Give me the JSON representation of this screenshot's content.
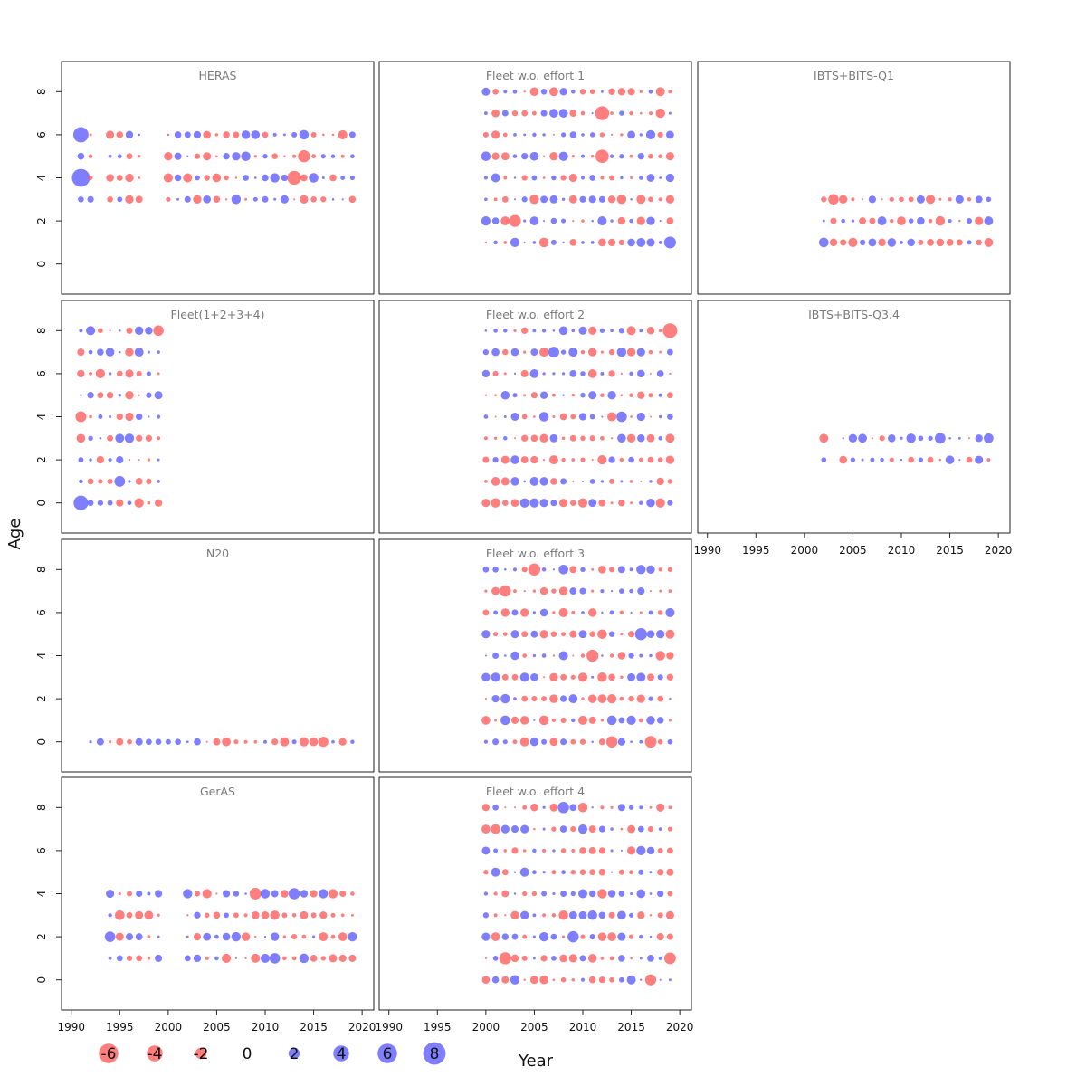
{
  "chart_data": {
    "type": "scatter",
    "description_of_encoding": "bubble plot of residuals; circle area ~ |residual|, blue = positive, red = negative",
    "xlabel": "Year",
    "ylabel": "Age",
    "xlim": [
      1989,
      2021.2
    ],
    "ylim": [
      -1.4,
      9.4
    ],
    "x_ticks": [
      1990,
      1995,
      2000,
      2005,
      2010,
      2015,
      2020
    ],
    "y_ticks": [
      0,
      2,
      4,
      6,
      8
    ],
    "colors": {
      "positive": "#5a5aff",
      "negative": "#ff5a5a"
    },
    "legend": {
      "placement": "bottom-left",
      "entries": [
        {
          "label": "-6",
          "value": -6
        },
        {
          "label": "-4",
          "value": -4
        },
        {
          "label": "-2",
          "value": -2
        },
        {
          "label": "0",
          "value": 0
        },
        {
          "label": "2",
          "value": 2
        },
        {
          "label": "4",
          "value": 4
        },
        {
          "label": "6",
          "value": 6
        },
        {
          "label": "8",
          "value": 8
        }
      ]
    },
    "panels": [
      {
        "title": "HERAS",
        "col": 0,
        "row": 0,
        "x_axis": false,
        "y_axis": true,
        "ages": [
          3,
          4,
          5,
          6
        ],
        "years": [
          1991,
          2019
        ],
        "gaps": [
          1993,
          1998,
          1999
        ],
        "seed": 11,
        "specials": [
          [
            1991,
            6,
            5.5
          ],
          [
            1991,
            4,
            7.6
          ],
          [
            2013,
            4,
            -4.5
          ],
          [
            2014,
            5,
            -3.4
          ]
        ]
      },
      {
        "title": "Fleet w.o. effort 1",
        "col": 1,
        "row": 0,
        "x_axis": false,
        "y_axis": false,
        "ages": [
          1,
          2,
          3,
          4,
          5,
          6,
          7,
          8
        ],
        "years": [
          2000,
          2019
        ],
        "gaps": [],
        "seed": 23,
        "specials": [
          [
            2003,
            2,
            -3.4
          ],
          [
            2012,
            7,
            -4.6
          ],
          [
            2012,
            5,
            -4.2
          ],
          [
            2019,
            1,
            3.3
          ]
        ]
      },
      {
        "title": "IBTS+BITS-Q1",
        "col": 2,
        "row": 0,
        "x_axis": false,
        "y_axis": false,
        "ages": [
          1,
          2,
          3
        ],
        "years": [
          2002,
          2019
        ],
        "gaps": [],
        "seed": 37,
        "specials": [
          [
            2003,
            3,
            -2.6
          ]
        ]
      },
      {
        "title": "Fleet(1+2+3+4)",
        "col": 0,
        "row": 1,
        "x_axis": false,
        "y_axis": true,
        "ages": [
          0,
          1,
          2,
          3,
          4,
          5,
          6,
          7,
          8
        ],
        "years": [
          1991,
          1999
        ],
        "gaps": [],
        "seed": 41,
        "specials": [
          [
            1991,
            0,
            5.0
          ],
          [
            1991,
            4,
            -2.8
          ],
          [
            1999,
            8,
            -2.6
          ],
          [
            1995,
            1,
            2.7
          ]
        ]
      },
      {
        "title": "Fleet w.o. effort 2",
        "col": 1,
        "row": 1,
        "x_axis": false,
        "y_axis": false,
        "ages": [
          0,
          1,
          2,
          3,
          4,
          5,
          6,
          7,
          8
        ],
        "years": [
          2000,
          2019
        ],
        "gaps": [],
        "seed": 53,
        "specials": [
          [
            2019,
            8,
            -5.0
          ],
          [
            2007,
            7,
            2.8
          ],
          [
            2014,
            4,
            2.6
          ]
        ]
      },
      {
        "title": "IBTS+BITS-Q3.4",
        "col": 2,
        "row": 1,
        "x_axis": true,
        "y_axis": false,
        "ages": [
          2,
          3
        ],
        "years": [
          2002,
          2019
        ],
        "gaps": [
          2003
        ],
        "seed": 67,
        "specials": [
          [
            2014,
            3,
            2.7
          ],
          [
            2019,
            3,
            2.2
          ]
        ]
      },
      {
        "title": "N20",
        "col": 0,
        "row": 2,
        "x_axis": false,
        "y_axis": true,
        "ages": [
          0
        ],
        "years": [
          1992,
          2019
        ],
        "gaps": [],
        "seed": 71,
        "specials": [
          [
            2016,
            0,
            -2.4
          ],
          [
            2014,
            0,
            -2.0
          ]
        ]
      },
      {
        "title": "Fleet w.o. effort 3",
        "col": 1,
        "row": 2,
        "x_axis": false,
        "y_axis": false,
        "ages": [
          0,
          1,
          2,
          3,
          4,
          5,
          6,
          7,
          8
        ],
        "years": [
          2000,
          2019
        ],
        "gaps": [],
        "seed": 83,
        "specials": [
          [
            2005,
            8,
            -3.4
          ],
          [
            2002,
            7,
            -3.0
          ],
          [
            2011,
            4,
            -3.4
          ],
          [
            2016,
            5,
            3.4
          ],
          [
            2013,
            0,
            -3.0
          ],
          [
            2017,
            0,
            -3.2
          ]
        ]
      },
      {
        "title": "GerAS",
        "col": 0,
        "row": 3,
        "x_axis": true,
        "y_axis": true,
        "ages": [
          1,
          2,
          3,
          4
        ],
        "years": [
          1994,
          2019
        ],
        "gaps": [
          2000,
          2001
        ],
        "seed": 97,
        "specials": [
          [
            2009,
            4,
            -3.2
          ],
          [
            2013,
            4,
            3.0
          ],
          [
            1994,
            2,
            2.6
          ],
          [
            2011,
            1,
            2.6
          ]
        ]
      },
      {
        "title": "Fleet w.o. effort 4",
        "col": 1,
        "row": 3,
        "x_axis": true,
        "y_axis": false,
        "ages": [
          0,
          1,
          2,
          3,
          4,
          5,
          6,
          7,
          8
        ],
        "years": [
          2000,
          2019
        ],
        "gaps": [],
        "seed": 101,
        "specials": [
          [
            2002,
            1,
            -3.4
          ],
          [
            2008,
            8,
            3.0
          ],
          [
            2009,
            2,
            3.0
          ],
          [
            2019,
            1,
            -3.2
          ],
          [
            2017,
            0,
            -2.9
          ]
        ]
      }
    ]
  }
}
